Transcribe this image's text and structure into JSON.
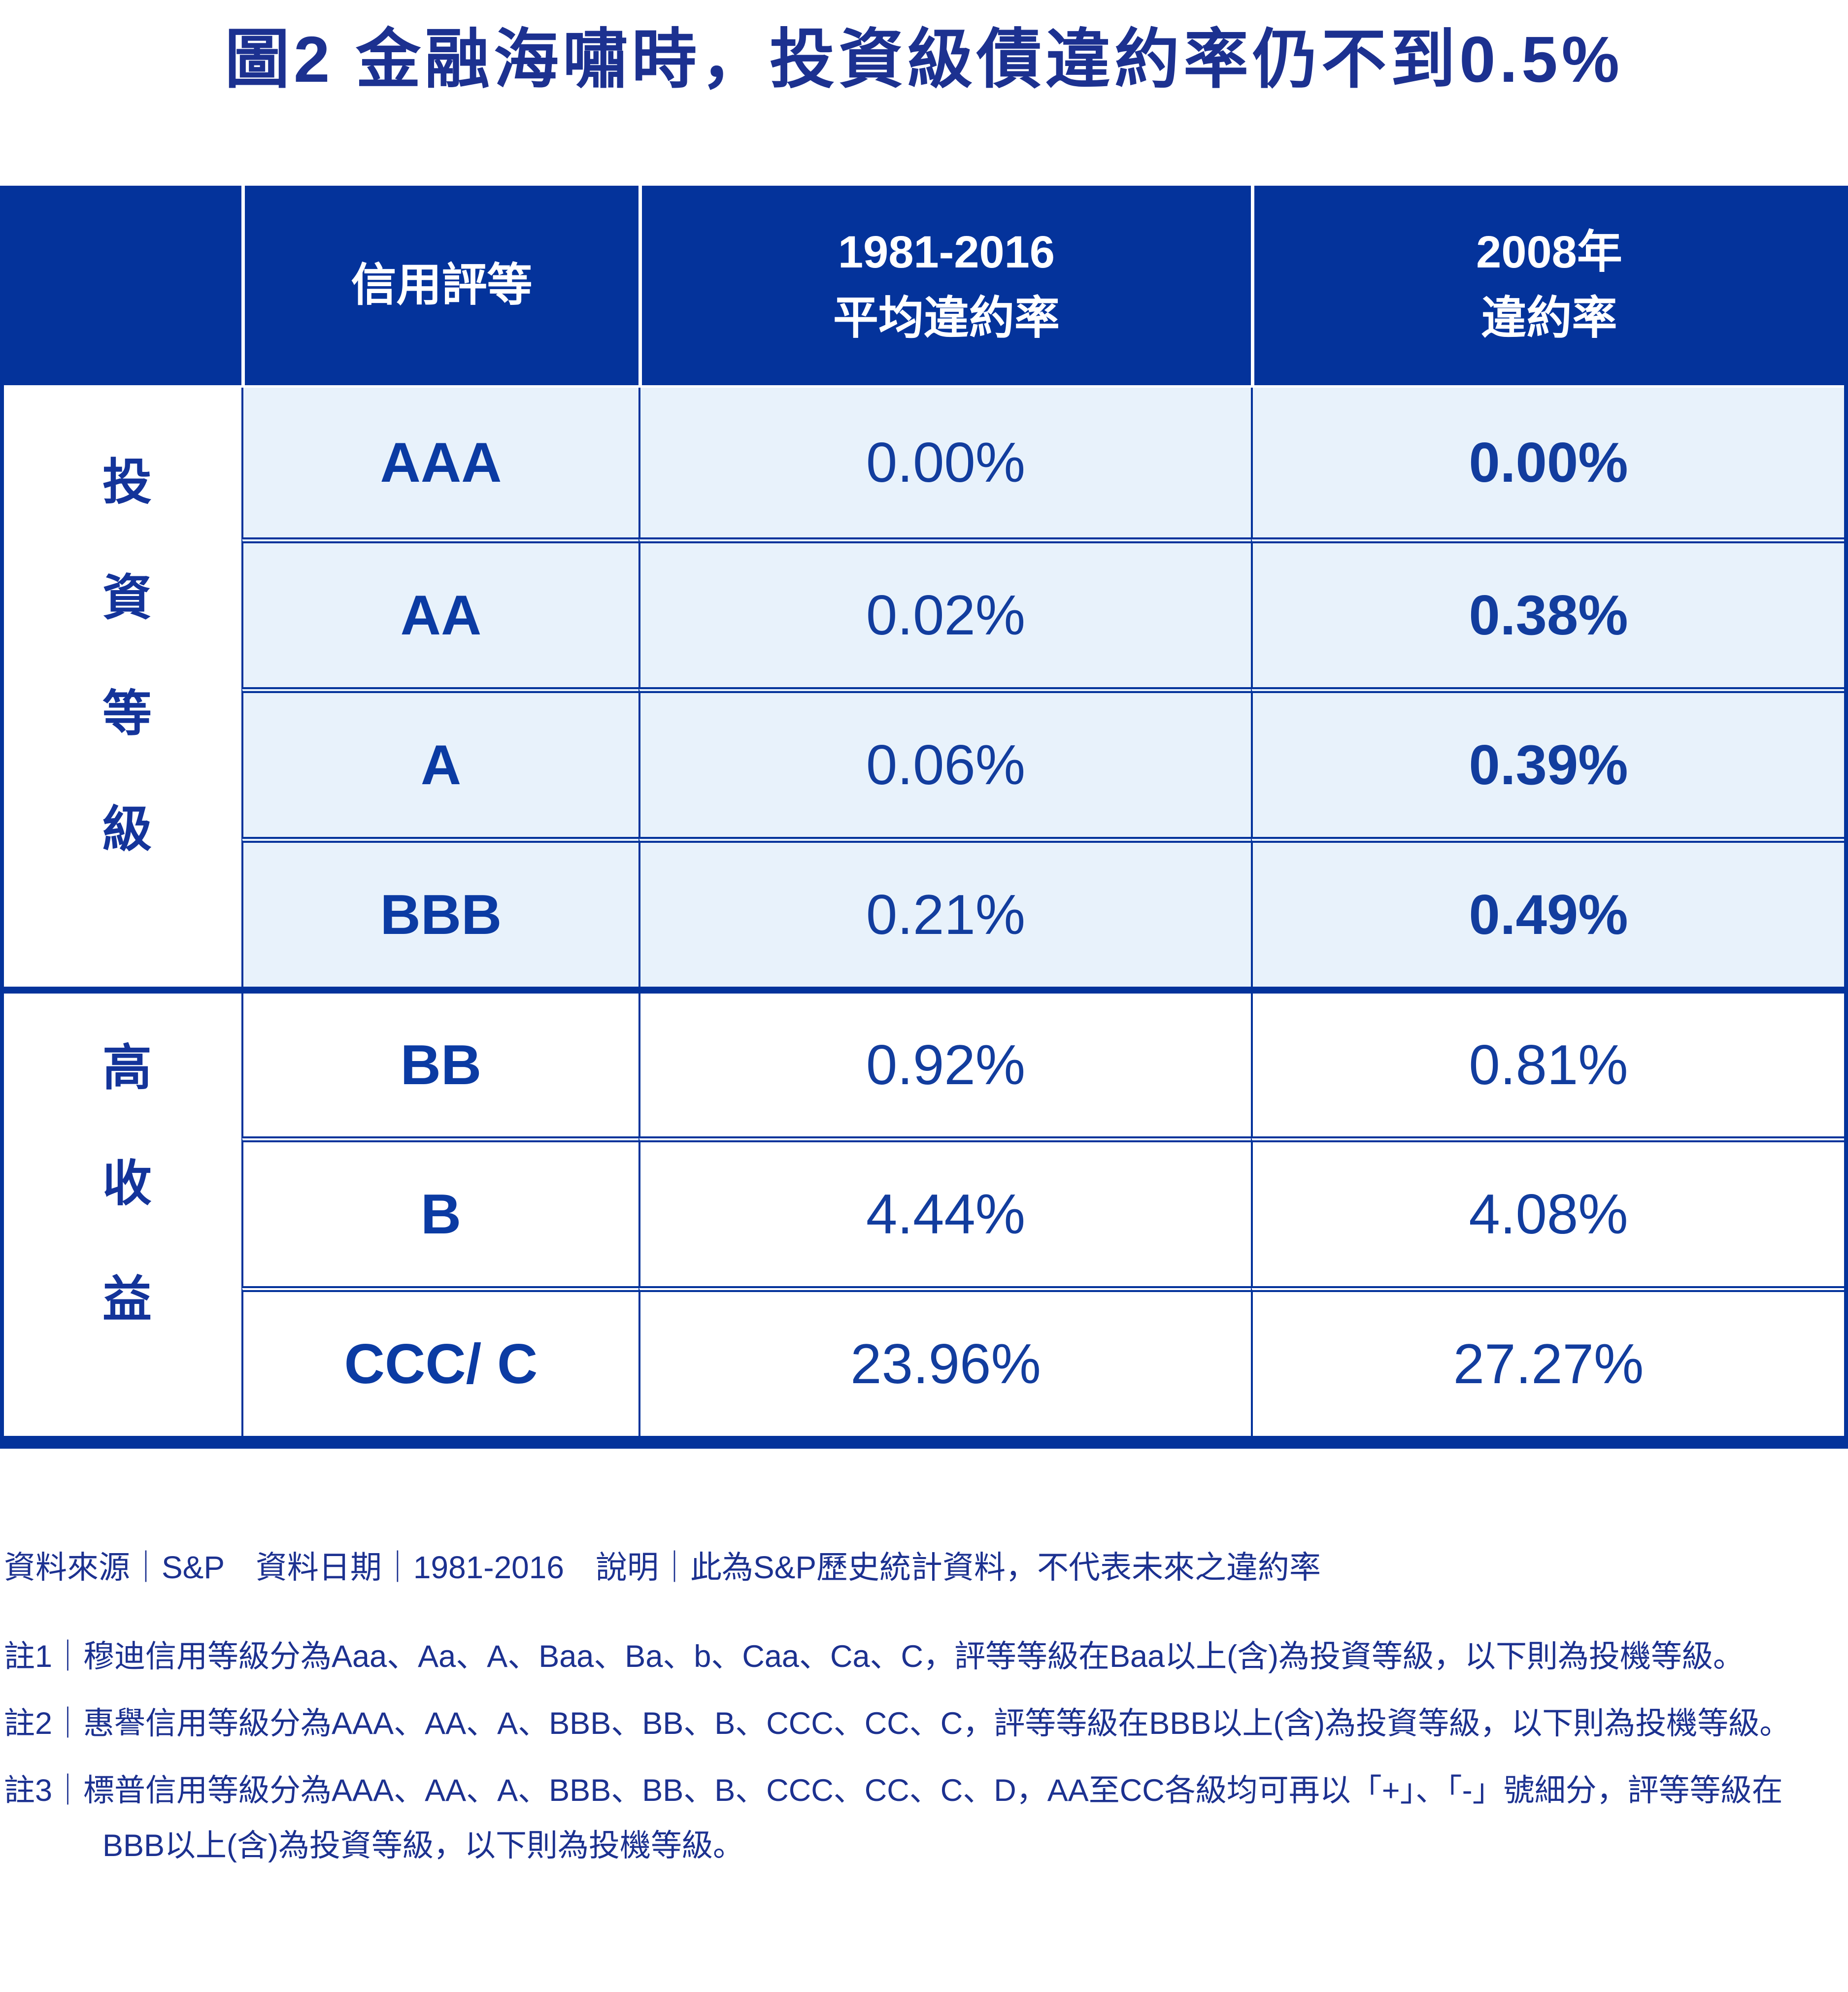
{
  "title": "圖2 金融海嘯時，投資級債違約率仍不到0.5%",
  "colors": {
    "primary_blue": "#04339B",
    "navy_text": "#1C3190",
    "light_blue_bg": "#E8F2FB",
    "value_text": "#123D9E"
  },
  "table": {
    "headers": {
      "rating": "信用評等",
      "avg_line1": "1981-2016",
      "avg_line2": "平均違約率",
      "y2008_line1": "2008年",
      "y2008_line2": "違約率"
    },
    "groups": [
      {
        "label": "投資等級"
      },
      {
        "label": "高收益"
      }
    ],
    "rows": [
      {
        "rating": "AAA",
        "avg": "0.00%",
        "y2008": "0.00%"
      },
      {
        "rating": "AA",
        "avg": "0.02%",
        "y2008": "0.38%"
      },
      {
        "rating": "A",
        "avg": "0.06%",
        "y2008": "0.39%"
      },
      {
        "rating": "BBB",
        "avg": "0.21%",
        "y2008": "0.49%"
      },
      {
        "rating": "BB",
        "avg": "0.92%",
        "y2008": "0.81%"
      },
      {
        "rating": "B",
        "avg": "4.44%",
        "y2008": "4.08%"
      },
      {
        "rating": "CCC/ C",
        "avg": "23.96%",
        "y2008": "27.27%"
      }
    ]
  },
  "footer": {
    "source_line": "資料來源｜S&P　資料日期｜1981-2016　說明｜此為S&P歷史統計資料，不代表未來之違約率",
    "notes": [
      "註1｜穆迪信用等級分為Aaa、Aa、A、Baa、Ba、b、Caa、Ca、C，評等等級在Baa以上(含)為投資等級，以下則為投機等級。",
      "註2｜惠譽信用等級分為AAA、AA、A、BBB、BB、B、CCC、CC、C，評等等級在BBB以上(含)為投資等級，以下則為投機等級。",
      "註3｜標普信用等級分為AAA、AA、A、BBB、BB、B、CCC、CC、C、D，AA至CC各級均可再以「+」、「-」號細分，評等等級在BBB以上(含)為投資等級，以下則為投機等級。"
    ]
  },
  "chart_data": {
    "type": "table",
    "title": "圖2 金融海嘯時，投資級債違約率仍不到0.5%",
    "columns": [
      "信用評等",
      "1981-2016 平均違約率",
      "2008年 違約率"
    ],
    "row_groups": [
      {
        "group": "投資等級",
        "rows": [
          [
            "AAA",
            "0.00%",
            "0.00%"
          ],
          [
            "AA",
            "0.02%",
            "0.38%"
          ],
          [
            "A",
            "0.06%",
            "0.39%"
          ],
          [
            "BBB",
            "0.21%",
            "0.49%"
          ]
        ]
      },
      {
        "group": "高收益",
        "rows": [
          [
            "BB",
            "0.92%",
            "0.81%"
          ],
          [
            "B",
            "4.44%",
            "4.08%"
          ],
          [
            "CCC/ C",
            "23.96%",
            "27.27%"
          ]
        ]
      }
    ],
    "source": "S&P",
    "date_range": "1981-2016",
    "layout_hints": {
      "investment_grade_rows_highlighted": true,
      "bold_2008_column_for_investment_grade": true
    }
  }
}
